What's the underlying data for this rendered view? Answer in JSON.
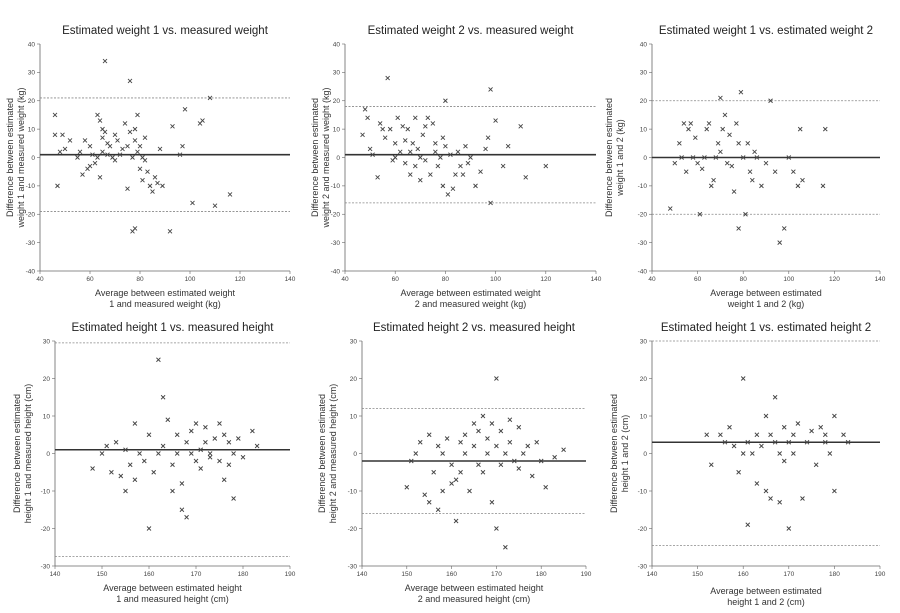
{
  "chart_data": [
    {
      "type": "scatter",
      "title": "Estimated weight 1 vs. measured weight",
      "xlabel": "Average between estimated weight 1 and measured weight (kg)",
      "ylabel": "Difference between estimated weight 1 and measured weight (kg)",
      "xlim": [
        40,
        140
      ],
      "ylim": [
        -40,
        40
      ],
      "xticks": [
        40,
        60,
        80,
        100,
        120,
        140
      ],
      "yticks": [
        -40,
        -30,
        -20,
        -10,
        0,
        10,
        20,
        30,
        40
      ],
      "mean_line": 1,
      "upper_limit": 21,
      "lower_limit": -19,
      "series": [
        {
          "x": [
            46,
            46,
            47,
            48,
            49,
            50,
            52,
            55,
            56,
            57,
            58,
            59,
            60,
            60,
            61,
            62,
            63,
            63,
            64,
            64,
            65,
            65,
            65,
            66,
            66,
            67,
            67,
            68,
            69,
            70,
            70,
            71,
            72,
            73,
            74,
            75,
            75,
            76,
            76,
            77,
            77,
            78,
            78,
            78,
            79,
            79,
            80,
            80,
            81,
            81,
            82,
            82,
            83,
            84,
            85,
            86,
            87,
            88,
            89,
            92,
            93,
            96,
            97,
            98,
            101,
            104,
            105,
            108,
            110,
            116
          ],
          "y": [
            15,
            8,
            -10,
            2,
            8,
            3,
            6,
            0,
            2,
            -6,
            6,
            -4,
            -3,
            4,
            1,
            -2,
            0,
            15,
            13,
            -7,
            7,
            10,
            2,
            34,
            9,
            5,
            1,
            4,
            0,
            -1,
            8,
            6,
            1,
            3,
            12,
            -11,
            4,
            27,
            9,
            0,
            -26,
            10,
            -25,
            6,
            2,
            15,
            -4,
            4,
            0,
            -8,
            7,
            -1,
            -5,
            -10,
            -12,
            -7,
            -9,
            3,
            -10,
            -26,
            11,
            1,
            4,
            17,
            -16,
            12,
            13,
            21,
            -17,
            -13
          ]
        }
      ]
    },
    {
      "type": "scatter",
      "title": "Estimated weight 2 vs. measured weight",
      "xlabel": "Average between estimated weight 2 and measured weight (kg)",
      "ylabel": "Difference between estimated weight 2 and measured weight (kg)",
      "xlim": [
        40,
        140
      ],
      "ylim": [
        -40,
        40
      ],
      "xticks": [
        40,
        60,
        80,
        100,
        120,
        140
      ],
      "yticks": [
        -40,
        -30,
        -20,
        -10,
        0,
        10,
        20,
        30,
        40
      ],
      "mean_line": 1,
      "upper_limit": 18,
      "lower_limit": -16,
      "series": [
        {
          "x": [
            47,
            48,
            49,
            50,
            51,
            53,
            54,
            55,
            56,
            57,
            58,
            59,
            60,
            60,
            61,
            62,
            63,
            64,
            64,
            65,
            66,
            66,
            67,
            68,
            68,
            69,
            70,
            70,
            71,
            72,
            72,
            73,
            74,
            75,
            76,
            76,
            77,
            78,
            79,
            79,
            80,
            80,
            81,
            82,
            83,
            84,
            85,
            86,
            87,
            88,
            89,
            90,
            92,
            94,
            96,
            97,
            98,
            98,
            100,
            103,
            105,
            110,
            112,
            120
          ],
          "y": [
            8,
            17,
            14,
            3,
            1,
            -7,
            12,
            10,
            7,
            28,
            10,
            -1,
            0,
            5,
            14,
            2,
            11,
            6,
            -2,
            10,
            -6,
            2,
            5,
            -3,
            14,
            3,
            0,
            -8,
            8,
            11,
            -1,
            14,
            -6,
            12,
            5,
            2,
            -3,
            0,
            -10,
            7,
            20,
            4,
            -13,
            1,
            -11,
            -6,
            2,
            -3,
            -6,
            4,
            -2,
            0,
            -10,
            -5,
            3,
            7,
            -16,
            24,
            13,
            -3,
            4,
            11,
            -7,
            -3
          ]
        }
      ]
    },
    {
      "type": "scatter",
      "title": "Estimated weight 1 vs. estimated weight 2",
      "xlabel": "Average between estimated weight 1 and 2 (kg)",
      "ylabel": "Difference between estimated weight 1 and 2 (kg)",
      "xlim": [
        40,
        140
      ],
      "ylim": [
        -40,
        40
      ],
      "xticks": [
        40,
        60,
        80,
        100,
        120,
        140
      ],
      "yticks": [
        -40,
        -30,
        -20,
        -10,
        0,
        10,
        20,
        30,
        40
      ],
      "mean_line": 0,
      "upper_limit": 20,
      "lower_limit": -20,
      "series": [
        {
          "x": [
            48,
            50,
            52,
            53,
            54,
            55,
            56,
            57,
            58,
            59,
            60,
            61,
            62,
            63,
            64,
            65,
            66,
            67,
            68,
            69,
            70,
            70,
            71,
            72,
            73,
            74,
            75,
            76,
            77,
            78,
            78,
            79,
            80,
            81,
            82,
            83,
            84,
            85,
            86,
            88,
            90,
            92,
            94,
            96,
            98,
            100,
            102,
            104,
            105,
            106,
            115,
            116
          ],
          "y": [
            -18,
            -2,
            5,
            0,
            12,
            -5,
            10,
            12,
            0,
            7,
            -2,
            -20,
            -4,
            0,
            10,
            12,
            -10,
            -8,
            0,
            5,
            2,
            21,
            10,
            15,
            -2,
            8,
            -3,
            -12,
            12,
            -25,
            5,
            23,
            0,
            -20,
            5,
            -5,
            -8,
            2,
            0,
            -10,
            -2,
            20,
            -5,
            -30,
            -25,
            0,
            -5,
            -10,
            10,
            -8,
            -10,
            10
          ]
        }
      ]
    },
    {
      "type": "scatter",
      "title": "Estimated height 1 vs. measured height",
      "xlabel": "Average between estimated height 1 and measured height (cm)",
      "ylabel": "Difference between estimated height 1 and measured height (cm)",
      "xlim": [
        140,
        190
      ],
      "ylim": [
        -30,
        30
      ],
      "xticks": [
        140,
        150,
        160,
        170,
        180,
        190
      ],
      "yticks": [
        -30,
        -20,
        -10,
        0,
        10,
        20,
        30
      ],
      "mean_line": 1,
      "upper_limit": 29.5,
      "lower_limit": -27.5,
      "series": [
        {
          "x": [
            148,
            150,
            151,
            152,
            153,
            154,
            155,
            155,
            156,
            157,
            157,
            158,
            159,
            160,
            160,
            161,
            162,
            162,
            163,
            163,
            164,
            165,
            165,
            166,
            166,
            167,
            167,
            168,
            168,
            169,
            169,
            170,
            170,
            171,
            171,
            172,
            172,
            173,
            173,
            174,
            175,
            175,
            176,
            176,
            177,
            177,
            178,
            178,
            179,
            180,
            182,
            183
          ],
          "y": [
            -4,
            0,
            2,
            -5,
            3,
            -6,
            1,
            -10,
            -3,
            8,
            -7,
            0,
            -2,
            -20,
            5,
            -5,
            25,
            0,
            15,
            2,
            9,
            -3,
            -10,
            0,
            5,
            -15,
            -8,
            -17,
            3,
            0,
            6,
            -2,
            8,
            1,
            -4,
            7,
            3,
            -1,
            0,
            4,
            8,
            -2,
            5,
            -7,
            -3,
            3,
            -12,
            0,
            4,
            -1,
            6,
            2
          ]
        }
      ]
    },
    {
      "type": "scatter",
      "title": "Estimated height 2 vs. measured height",
      "xlabel": "Average between estimated height 2 and measured height (cm)",
      "ylabel": "Difference between estimated height 2 and measured height (cm)",
      "xlim": [
        140,
        190
      ],
      "ylim": [
        -30,
        30
      ],
      "xticks": [
        140,
        150,
        160,
        170,
        180,
        190
      ],
      "yticks": [
        -30,
        -20,
        -10,
        0,
        10,
        20,
        30
      ],
      "mean_line": -2,
      "upper_limit": 12,
      "lower_limit": -16,
      "series": [
        {
          "x": [
            150,
            151,
            152,
            153,
            154,
            155,
            155,
            156,
            157,
            157,
            158,
            158,
            159,
            160,
            160,
            161,
            161,
            162,
            162,
            163,
            163,
            164,
            165,
            165,
            166,
            166,
            167,
            167,
            168,
            168,
            169,
            169,
            170,
            170,
            170,
            171,
            171,
            172,
            172,
            173,
            173,
            174,
            175,
            175,
            176,
            177,
            178,
            179,
            180,
            181,
            183,
            185
          ],
          "y": [
            -9,
            -2,
            0,
            3,
            -11,
            5,
            -13,
            -5,
            2,
            -15,
            0,
            -10,
            4,
            -3,
            -8,
            -18,
            -7,
            3,
            -5,
            5,
            0,
            -10,
            8,
            2,
            -3,
            6,
            10,
            -5,
            0,
            4,
            8,
            -13,
            20,
            -20,
            2,
            -3,
            6,
            -25,
            0,
            9,
            3,
            -2,
            7,
            -4,
            0,
            2,
            -6,
            3,
            -2,
            -9,
            -1,
            1
          ]
        }
      ]
    },
    {
      "type": "scatter",
      "title": "Estimated height 1 vs. estimated height 2",
      "xlabel": "Average between estimated height 1 and 2 (cm)",
      "ylabel": "Difference between estimated height 1 and 2 (cm)",
      "xlim": [
        140,
        190
      ],
      "ylim": [
        -30,
        30
      ],
      "xticks": [
        140,
        150,
        160,
        170,
        180,
        190
      ],
      "yticks": [
        -30,
        -20,
        -10,
        0,
        10,
        20,
        30
      ],
      "mean_line": 3,
      "upper_limit": 30,
      "lower_limit": -24.5,
      "series": [
        {
          "x": [
            152,
            153,
            155,
            156,
            157,
            158,
            159,
            160,
            160,
            161,
            161,
            162,
            163,
            163,
            164,
            165,
            165,
            166,
            166,
            167,
            167,
            168,
            168,
            169,
            169,
            170,
            170,
            171,
            171,
            172,
            173,
            174,
            175,
            176,
            177,
            178,
            178,
            179,
            180,
            180,
            182,
            183
          ],
          "y": [
            5,
            -3,
            5,
            3,
            7,
            2,
            -5,
            20,
            0,
            -19,
            3,
            0,
            5,
            -8,
            2,
            10,
            -10,
            5,
            -12,
            3,
            15,
            -13,
            0,
            7,
            -2,
            -20,
            3,
            5,
            0,
            8,
            -12,
            3,
            6,
            -3,
            7,
            3,
            5,
            0,
            10,
            -10,
            5,
            3
          ]
        }
      ]
    }
  ]
}
